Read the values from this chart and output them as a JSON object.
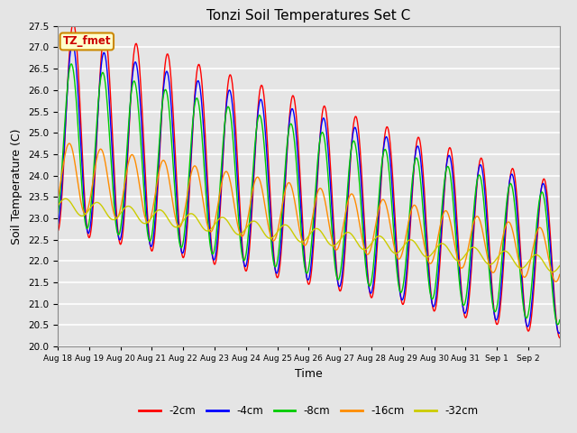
{
  "title": "Tonzi Soil Temperatures Set C",
  "xlabel": "Time",
  "ylabel": "Soil Temperature (C)",
  "ylim": [
    20.0,
    27.5
  ],
  "yticks": [
    20.0,
    20.5,
    21.0,
    21.5,
    22.0,
    22.5,
    23.0,
    23.5,
    24.0,
    24.5,
    25.0,
    25.5,
    26.0,
    26.5,
    27.0,
    27.5
  ],
  "legend_label": "TZ_fmet",
  "series_labels": [
    "-2cm",
    "-4cm",
    "-8cm",
    "-16cm",
    "-32cm"
  ],
  "series_colors": [
    "#ff0000",
    "#0000ff",
    "#00cc00",
    "#ff8c00",
    "#cccc00"
  ],
  "n_days": 16,
  "plot_bg_color": "#e5e5e5",
  "fig_bg_color": "#e5e5e5",
  "grid_color": "#ffffff",
  "xtick_labels": [
    "Aug 18",
    "Aug 19",
    "Aug 20",
    "Aug 21",
    "Aug 22",
    "Aug 23",
    "Aug 24",
    "Aug 25",
    "Aug 26",
    "Aug 27",
    "Aug 28",
    "Aug 29",
    "Aug 30",
    "Aug 31",
    "Sep 1",
    "Sep 2"
  ]
}
